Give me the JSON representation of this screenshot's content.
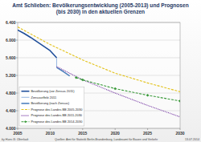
{
  "chart_data": {
    "type": "line",
    "title": "Amt Schlieben:  Bevölkerungsentwicklung (2005-2013) und Prognosen (bis 2030) in den aktuellen Grenzen",
    "author": "by Hans G. Oberlack",
    "source": "Quellen: Amt für Statistik Berlin-Brandenburg, Landesamt für Bauen und Verkehr",
    "date": "13.07.2014",
    "xlim": [
      2005,
      2030
    ],
    "xticks": [
      2005,
      2010,
      2015,
      2020,
      2025,
      2030
    ],
    "ylim": [
      4000,
      6400
    ],
    "yticks": [
      {
        "value": 4000,
        "label": "4.000"
      },
      {
        "value": 4400,
        "label": "4.400"
      },
      {
        "value": 4800,
        "label": "4.800"
      },
      {
        "value": 5200,
        "label": "5.200"
      },
      {
        "value": 5600,
        "label": "5.600"
      },
      {
        "value": 6000,
        "label": "6.000"
      },
      {
        "value": 6400,
        "label": "6.400"
      }
    ],
    "grid": true,
    "legend": "lower left",
    "series": [
      {
        "name": "Bevölkerung (vor Zensus 2011)",
        "color": "#1f4e9a",
        "line_style": "solid",
        "marker": "none",
        "x": [
          2005,
          2006,
          2007,
          2008,
          2009,
          2010,
          2011
        ],
        "values": [
          6230,
          6150,
          6060,
          5960,
          5860,
          5760,
          5600
        ]
      },
      {
        "name": "Zensuseffekt 2011",
        "color": "#9dbbe3",
        "line_style": "solid",
        "marker": "none",
        "x": [
          2011,
          2011
        ],
        "values": [
          5600,
          5380
        ]
      },
      {
        "name": "Bevölkerung (nach Zensus)",
        "color": "#4f81bd",
        "line_style": "solid",
        "marker": "none",
        "x": [
          2011,
          2012,
          2013
        ],
        "values": [
          5380,
          5290,
          5190
        ]
      },
      {
        "name": "Prognose des Landes BB 2005-2030",
        "color": "#e3c21a",
        "line_style": "dashed",
        "marker": "none",
        "x": [
          2005,
          2010,
          2015,
          2020,
          2025,
          2030
        ],
        "values": [
          6300,
          5900,
          5550,
          5250,
          5030,
          4830
        ]
      },
      {
        "name": "Prognose des Landes BB 2011-2030",
        "color": "#7030a0",
        "line_style": "dotted",
        "marker": "none",
        "x": [
          2011,
          2015,
          2020,
          2025,
          2030
        ],
        "values": [
          5400,
          5100,
          4800,
          4520,
          4260
        ]
      },
      {
        "name": "Prognose des Landes BB 2014-2030",
        "color": "#3a9a3a",
        "line_style": "dashed",
        "marker": "diamond",
        "x": [
          2014,
          2015,
          2020,
          2025,
          2030
        ],
        "values": [
          5150,
          5100,
          4900,
          4750,
          4620
        ]
      }
    ]
  }
}
